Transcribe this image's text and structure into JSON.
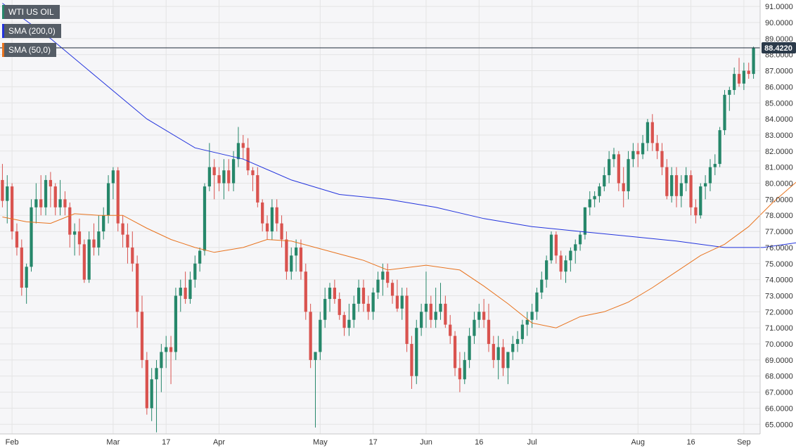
{
  "legend": {
    "instrument": "WTI US OIL",
    "sma200_label": "SMA (200,0)",
    "sma50_label": "SMA (50,0)"
  },
  "colors": {
    "up": "#26876a",
    "down": "#d9534f",
    "sma200": "#2233dd",
    "sma50": "#e8731e",
    "grid": "#e4e4e4",
    "price_line": "#1d2a3a",
    "price_badge": "#2b3a4a",
    "plot_bg": "#f6f6f8"
  },
  "chart_data": {
    "type": "candlestick",
    "title": "",
    "ylim": [
      64.4,
      91.4
    ],
    "y_ticks": [
      "65.0000",
      "66.0000",
      "67.0000",
      "68.0000",
      "69.0000",
      "70.0000",
      "71.0000",
      "72.0000",
      "73.0000",
      "74.0000",
      "75.0000",
      "76.0000",
      "77.0000",
      "78.0000",
      "79.0000",
      "80.0000",
      "81.0000",
      "82.0000",
      "83.0000",
      "84.0000",
      "85.0000",
      "86.0000",
      "87.0000",
      "88.0000",
      "89.0000",
      "90.0000",
      "91.0000"
    ],
    "x_ticks": [
      {
        "label": "Feb",
        "i": 2
      },
      {
        "label": "Mar",
        "i": 23
      },
      {
        "label": "17",
        "i": 34
      },
      {
        "label": "Apr",
        "i": 45
      },
      {
        "label": "May",
        "i": 66
      },
      {
        "label": "17",
        "i": 77
      },
      {
        "label": "Jun",
        "i": 88
      },
      {
        "label": "16",
        "i": 99
      },
      {
        "label": "Jul",
        "i": 110
      },
      {
        "label": "Aug",
        "i": 132
      },
      {
        "label": "16",
        "i": 143
      },
      {
        "label": "Sep",
        "i": 154
      }
    ],
    "last_price": "88.4220",
    "ohlc": [
      [
        80.2,
        81.2,
        78.5,
        78.9
      ],
      [
        78.9,
        80.5,
        77.5,
        79.8
      ],
      [
        79.8,
        80.0,
        76.5,
        77.0
      ],
      [
        77.0,
        77.5,
        75.5,
        76.0
      ],
      [
        76.0,
        76.5,
        73.0,
        73.5
      ],
      [
        73.5,
        75.0,
        72.5,
        74.8
      ],
      [
        74.8,
        79.0,
        74.5,
        78.5
      ],
      [
        78.5,
        80.0,
        77.5,
        79.0
      ],
      [
        79.0,
        80.5,
        78.0,
        78.5
      ],
      [
        78.5,
        80.5,
        78.0,
        80.2
      ],
      [
        80.2,
        80.7,
        78.5,
        79.8
      ],
      [
        79.8,
        80.0,
        78.0,
        78.5
      ],
      [
        78.5,
        80.2,
        78.0,
        79.0
      ],
      [
        79.0,
        79.5,
        78.0,
        78.5
      ],
      [
        78.5,
        78.8,
        76.0,
        76.8
      ],
      [
        76.8,
        77.5,
        75.5,
        77.0
      ],
      [
        77.0,
        77.8,
        75.5,
        76.2
      ],
      [
        76.2,
        76.5,
        73.8,
        74.0
      ],
      [
        74.0,
        77.0,
        73.8,
        76.5
      ],
      [
        76.5,
        77.5,
        75.5,
        76.0
      ],
      [
        76.0,
        78.0,
        75.5,
        77.0
      ],
      [
        77.0,
        78.5,
        76.5,
        78.0
      ],
      [
        78.0,
        80.5,
        77.5,
        80.0
      ],
      [
        80.0,
        81.0,
        79.0,
        80.8
      ],
      [
        80.8,
        81.0,
        77.0,
        77.5
      ],
      [
        77.5,
        78.0,
        76.0,
        76.8
      ],
      [
        76.8,
        77.5,
        75.0,
        76.0
      ],
      [
        76.0,
        77.0,
        74.5,
        75.0
      ],
      [
        75.0,
        75.5,
        71.0,
        72.0
      ],
      [
        72.0,
        73.0,
        68.5,
        69.0
      ],
      [
        69.0,
        69.5,
        65.6,
        66.0
      ],
      [
        66.0,
        68.5,
        65.2,
        67.8
      ],
      [
        67.8,
        69.0,
        64.5,
        68.5
      ],
      [
        68.5,
        70.0,
        67.0,
        69.5
      ],
      [
        69.5,
        70.5,
        68.5,
        69.8
      ],
      [
        69.8,
        70.5,
        67.5,
        69.5
      ],
      [
        69.5,
        73.5,
        69.0,
        73.0
      ],
      [
        73.0,
        74.0,
        72.0,
        73.5
      ],
      [
        73.5,
        74.5,
        72.5,
        72.8
      ],
      [
        72.8,
        74.5,
        72.5,
        74.0
      ],
      [
        74.0,
        75.5,
        73.5,
        75.0
      ],
      [
        75.0,
        76.0,
        74.5,
        75.8
      ],
      [
        75.8,
        80.0,
        75.5,
        79.8
      ],
      [
        79.8,
        82.5,
        79.5,
        81.0
      ],
      [
        81.0,
        81.5,
        79.0,
        80.5
      ],
      [
        80.5,
        81.0,
        79.5,
        80.0
      ],
      [
        80.0,
        81.5,
        79.0,
        80.8
      ],
      [
        80.8,
        81.5,
        79.5,
        80.0
      ],
      [
        80.0,
        82.0,
        79.5,
        81.5
      ],
      [
        81.5,
        83.5,
        81.0,
        82.5
      ],
      [
        82.5,
        83.0,
        81.5,
        82.2
      ],
      [
        82.2,
        82.8,
        80.5,
        80.8
      ],
      [
        80.8,
        81.0,
        79.5,
        80.5
      ],
      [
        80.5,
        81.0,
        78.5,
        78.8
      ],
      [
        78.8,
        79.0,
        77.0,
        77.5
      ],
      [
        77.5,
        78.0,
        76.5,
        77.0
      ],
      [
        77.0,
        79.0,
        76.5,
        78.5
      ],
      [
        78.5,
        79.0,
        77.0,
        77.5
      ],
      [
        77.5,
        78.0,
        76.0,
        76.5
      ],
      [
        76.5,
        77.0,
        74.0,
        74.5
      ],
      [
        74.5,
        76.0,
        74.0,
        75.5
      ],
      [
        75.5,
        76.5,
        74.5,
        76.0
      ],
      [
        76.0,
        76.5,
        74.0,
        74.5
      ],
      [
        74.5,
        75.0,
        71.5,
        72.0
      ],
      [
        72.0,
        72.5,
        68.5,
        69.0
      ],
      [
        69.0,
        69.5,
        64.8,
        69.5
      ],
      [
        69.5,
        72.0,
        69.0,
        71.5
      ],
      [
        71.5,
        73.5,
        71.0,
        72.8
      ],
      [
        72.8,
        73.8,
        72.0,
        73.5
      ],
      [
        73.5,
        74.0,
        72.5,
        72.8
      ],
      [
        72.8,
        73.2,
        71.5,
        71.8
      ],
      [
        71.8,
        72.0,
        70.5,
        71.0
      ],
      [
        71.0,
        72.5,
        70.5,
        71.5
      ],
      [
        71.5,
        73.0,
        71.0,
        72.5
      ],
      [
        72.5,
        74.0,
        72.0,
        73.5
      ],
      [
        73.5,
        74.0,
        72.0,
        72.5
      ],
      [
        72.5,
        73.0,
        71.5,
        72.0
      ],
      [
        72.0,
        73.5,
        71.5,
        73.2
      ],
      [
        73.2,
        74.5,
        72.8,
        74.0
      ],
      [
        74.0,
        75.0,
        73.0,
        74.5
      ],
      [
        74.5,
        75.0,
        73.5,
        73.8
      ],
      [
        73.8,
        74.0,
        72.5,
        73.0
      ],
      [
        73.0,
        74.0,
        72.0,
        72.2
      ],
      [
        72.2,
        73.5,
        71.5,
        73.0
      ],
      [
        73.0,
        73.5,
        69.5,
        70.0
      ],
      [
        70.0,
        70.5,
        67.2,
        68.0
      ],
      [
        68.0,
        71.5,
        67.5,
        71.0
      ],
      [
        71.0,
        72.5,
        70.5,
        72.0
      ],
      [
        72.0,
        74.5,
        71.0,
        72.5
      ],
      [
        72.5,
        73.0,
        71.0,
        71.5
      ],
      [
        71.5,
        73.5,
        71.0,
        72.0
      ],
      [
        72.0,
        73.8,
        71.5,
        72.5
      ],
      [
        72.5,
        73.0,
        71.0,
        71.2
      ],
      [
        71.2,
        71.8,
        70.0,
        70.5
      ],
      [
        70.5,
        70.8,
        68.0,
        68.5
      ],
      [
        68.5,
        69.5,
        67.0,
        67.8
      ],
      [
        67.8,
        69.5,
        67.5,
        69.0
      ],
      [
        69.0,
        71.0,
        68.5,
        70.5
      ],
      [
        70.5,
        72.0,
        70.0,
        71.5
      ],
      [
        71.5,
        72.5,
        71.0,
        72.0
      ],
      [
        72.0,
        72.8,
        71.0,
        71.5
      ],
      [
        71.5,
        72.5,
        69.5,
        70.0
      ],
      [
        70.0,
        70.5,
        68.5,
        69.0
      ],
      [
        69.0,
        70.5,
        67.8,
        69.8
      ],
      [
        69.8,
        70.3,
        68.0,
        68.5
      ],
      [
        68.5,
        69.5,
        67.5,
        69.5
      ],
      [
        69.5,
        70.5,
        69.0,
        70.0
      ],
      [
        70.0,
        70.8,
        69.5,
        70.3
      ],
      [
        70.3,
        71.5,
        70.0,
        71.2
      ],
      [
        71.2,
        72.0,
        70.5,
        71.5
      ],
      [
        71.5,
        72.5,
        71.0,
        72.0
      ],
      [
        72.0,
        73.5,
        71.5,
        73.2
      ],
      [
        73.2,
        74.5,
        72.8,
        74.0
      ],
      [
        74.0,
        75.5,
        73.5,
        75.2
      ],
      [
        75.2,
        77.0,
        75.0,
        76.8
      ],
      [
        76.8,
        77.0,
        75.0,
        75.5
      ],
      [
        75.5,
        75.8,
        74.0,
        74.5
      ],
      [
        74.5,
        75.5,
        73.8,
        75.2
      ],
      [
        75.2,
        76.0,
        74.5,
        75.8
      ],
      [
        75.8,
        76.5,
        75.0,
        76.2
      ],
      [
        76.2,
        77.0,
        75.8,
        76.8
      ],
      [
        76.8,
        78.5,
        76.5,
        78.5
      ],
      [
        78.5,
        79.5,
        78.0,
        79.0
      ],
      [
        79.0,
        79.5,
        78.5,
        79.2
      ],
      [
        79.2,
        80.0,
        78.8,
        79.8
      ],
      [
        79.8,
        81.0,
        79.5,
        80.5
      ],
      [
        80.5,
        82.0,
        80.0,
        81.5
      ],
      [
        81.5,
        82.2,
        81.0,
        81.8
      ],
      [
        81.8,
        82.0,
        79.5,
        80.0
      ],
      [
        80.0,
        81.0,
        78.5,
        79.5
      ],
      [
        79.5,
        82.0,
        79.0,
        81.5
      ],
      [
        81.5,
        82.5,
        81.0,
        82.0
      ],
      [
        82.0,
        82.5,
        81.0,
        81.8
      ],
      [
        81.8,
        83.0,
        81.5,
        82.5
      ],
      [
        82.5,
        84.0,
        82.0,
        83.8
      ],
      [
        83.8,
        84.3,
        82.0,
        82.5
      ],
      [
        82.5,
        83.0,
        81.5,
        82.0
      ],
      [
        82.0,
        82.5,
        80.5,
        81.0
      ],
      [
        81.0,
        81.5,
        79.0,
        79.2
      ],
      [
        79.2,
        81.0,
        78.8,
        80.5
      ],
      [
        80.5,
        81.0,
        78.5,
        79.2
      ],
      [
        79.2,
        80.5,
        78.5,
        80.0
      ],
      [
        80.0,
        81.0,
        79.5,
        80.5
      ],
      [
        80.5,
        80.8,
        78.0,
        78.5
      ],
      [
        78.5,
        79.0,
        77.5,
        78.0
      ],
      [
        78.0,
        80.0,
        77.8,
        79.8
      ],
      [
        79.8,
        80.5,
        79.0,
        80.0
      ],
      [
        80.0,
        81.5,
        79.5,
        81.0
      ],
      [
        81.0,
        81.8,
        80.5,
        81.2
      ],
      [
        81.2,
        83.5,
        81.0,
        83.3
      ],
      [
        83.3,
        85.8,
        83.0,
        85.5
      ],
      [
        85.5,
        86.0,
        84.5,
        85.8
      ],
      [
        85.8,
        87.2,
        85.5,
        86.8
      ],
      [
        86.8,
        87.8,
        86.0,
        86.2
      ],
      [
        86.2,
        87.5,
        85.8,
        87.0
      ],
      [
        87.0,
        87.5,
        86.5,
        86.8
      ],
      [
        86.8,
        88.5,
        86.5,
        88.4
      ]
    ],
    "sma200": [
      [
        0,
        91.2
      ],
      [
        10,
        89.0
      ],
      [
        20,
        86.5
      ],
      [
        30,
        84.0
      ],
      [
        40,
        82.2
      ],
      [
        50,
        81.5
      ],
      [
        60,
        80.2
      ],
      [
        70,
        79.3
      ],
      [
        80,
        79.0
      ],
      [
        90,
        78.5
      ],
      [
        100,
        77.8
      ],
      [
        110,
        77.3
      ],
      [
        120,
        77.0
      ],
      [
        130,
        76.7
      ],
      [
        140,
        76.4
      ],
      [
        150,
        76.0
      ],
      [
        158,
        76.0
      ],
      [
        165,
        76.3
      ]
    ],
    "sma50": [
      [
        0,
        77.9
      ],
      [
        5,
        77.6
      ],
      [
        10,
        77.5
      ],
      [
        15,
        78.1
      ],
      [
        20,
        78.0
      ],
      [
        25,
        78.0
      ],
      [
        30,
        77.2
      ],
      [
        35,
        76.5
      ],
      [
        40,
        76.0
      ],
      [
        44,
        75.7
      ],
      [
        50,
        76.0
      ],
      [
        55,
        76.5
      ],
      [
        60,
        76.4
      ],
      [
        65,
        76.0
      ],
      [
        70,
        75.6
      ],
      [
        75,
        75.2
      ],
      [
        80,
        74.6
      ],
      [
        88,
        74.9
      ],
      [
        95,
        74.6
      ],
      [
        100,
        73.6
      ],
      [
        105,
        72.5
      ],
      [
        110,
        71.3
      ],
      [
        115,
        71.0
      ],
      [
        120,
        71.7
      ],
      [
        125,
        72.0
      ],
      [
        130,
        72.6
      ],
      [
        135,
        73.5
      ],
      [
        140,
        74.5
      ],
      [
        145,
        75.5
      ],
      [
        150,
        76.2
      ],
      [
        155,
        77.3
      ],
      [
        160,
        78.8
      ],
      [
        165,
        80.1
      ]
    ]
  }
}
